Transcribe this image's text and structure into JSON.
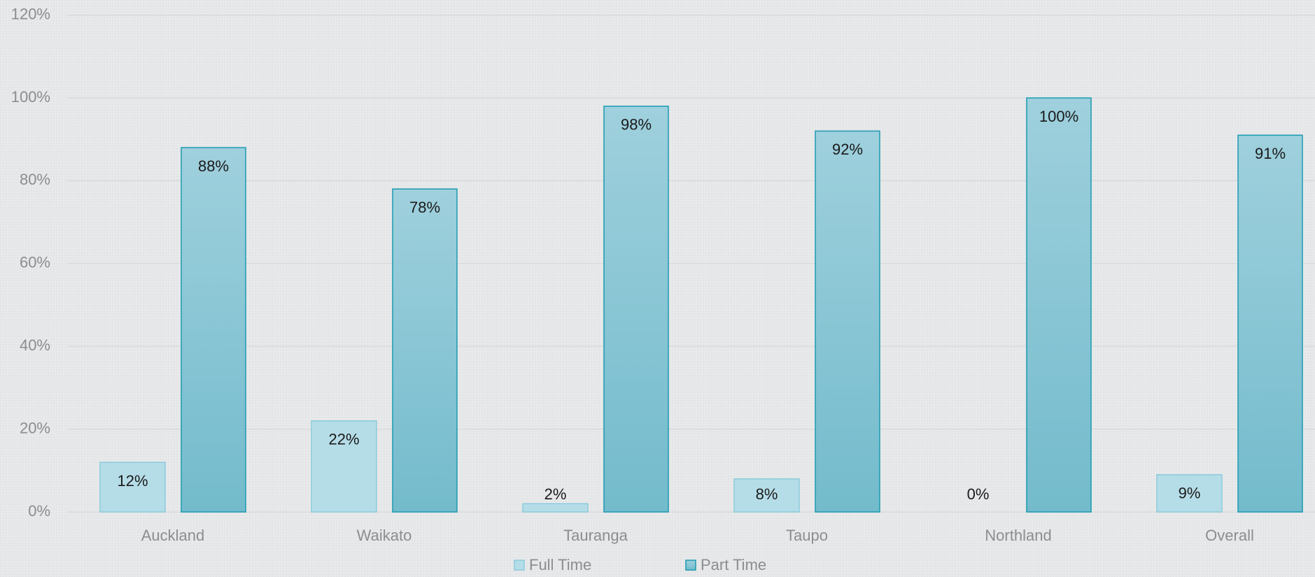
{
  "chart_data": {
    "type": "bar",
    "categories": [
      "Auckland",
      "Waikato",
      "Tauranga",
      "Taupo",
      "Northland",
      "Overall"
    ],
    "series": [
      {
        "name": "Full Time",
        "color": "#b5dde8",
        "values": [
          12,
          22,
          2,
          8,
          0,
          9
        ],
        "value_labels": [
          "12%",
          "22%",
          "2%",
          "8%",
          "0%",
          "9%"
        ]
      },
      {
        "name": "Part Time",
        "color": "#86c6d5",
        "values": [
          88,
          78,
          98,
          92,
          100,
          91
        ],
        "value_labels": [
          "88%",
          "78%",
          "98%",
          "92%",
          "100%",
          "91%"
        ]
      }
    ],
    "ylim": [
      0,
      120
    ],
    "yticks": [
      {
        "value": 0,
        "label": "0%"
      },
      {
        "value": 20,
        "label": "20%"
      },
      {
        "value": 40,
        "label": "40%"
      },
      {
        "value": 60,
        "label": "60%"
      },
      {
        "value": 80,
        "label": "80%"
      },
      {
        "value": 100,
        "label": "100%"
      },
      {
        "value": 120,
        "label": "120%"
      }
    ],
    "grid": true,
    "legend": "bottom"
  }
}
